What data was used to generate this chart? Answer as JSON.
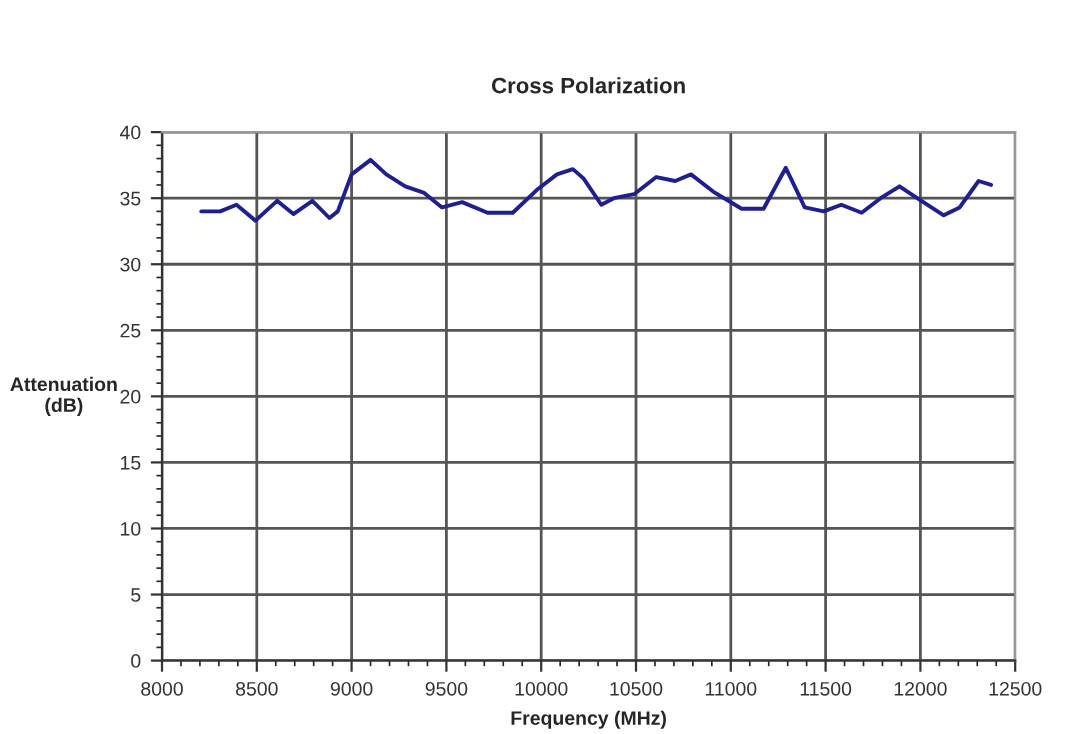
{
  "chart_data": {
    "type": "line",
    "title": "Cross Polarization",
    "xlabel": "Frequency (MHz)",
    "ylabel": "Attenuation\n(dB)",
    "xlim": [
      8000,
      12500
    ],
    "xticks": [
      8000,
      8500,
      9000,
      9500,
      10000,
      10500,
      11000,
      11500,
      12000,
      12500
    ],
    "ylim": [
      0,
      40
    ],
    "yticks": [
      0,
      5,
      10,
      15,
      20,
      25,
      30,
      35,
      40
    ],
    "grid": true,
    "marker": "none",
    "line_style": "solid",
    "series": [
      {
        "color": "#1f1f8f",
        "x": [
          8207,
          8307,
          8393,
          8493,
          8607,
          8693,
          8793,
          8883,
          8927,
          9000,
          9100,
          9183,
          9283,
          9383,
          9477,
          9583,
          9717,
          9850,
          9983,
          10083,
          10167,
          10223,
          10317,
          10383,
          10490,
          10607,
          10707,
          10790,
          10907,
          11057,
          11173,
          11290,
          11390,
          11490,
          11583,
          11690,
          11790,
          11890,
          11973,
          12123,
          12207,
          12307,
          12373
        ],
        "values": [
          34.0,
          34.0,
          34.5,
          33.3,
          34.8,
          33.8,
          34.8,
          33.5,
          34.0,
          36.8,
          37.9,
          36.8,
          35.9,
          35.4,
          34.3,
          34.7,
          33.9,
          33.9,
          35.7,
          36.8,
          37.2,
          36.5,
          34.5,
          35.0,
          35.3,
          36.6,
          36.3,
          36.8,
          35.5,
          34.2,
          34.2,
          37.3,
          34.3,
          34.0,
          34.5,
          33.9,
          35.0,
          35.9,
          35.1,
          33.7,
          34.3,
          36.3,
          36.0
        ]
      }
    ]
  }
}
